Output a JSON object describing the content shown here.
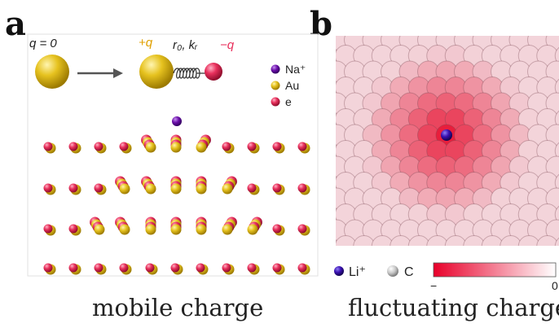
{
  "panels": {
    "a": {
      "label": "a",
      "caption": "mobile charge",
      "neutral_label": "q = 0",
      "plus_label": "+q",
      "spring_label": "r₀, kᵣ",
      "minus_label": "−q",
      "legend": [
        {
          "label": "Na⁺",
          "color": "#6a0da8"
        },
        {
          "label": "Au",
          "color": "#e6c21f"
        },
        {
          "label": "e",
          "color": "#e8305c"
        }
      ]
    },
    "b": {
      "label": "b",
      "caption": "fluctuating charge",
      "legend": [
        {
          "label": "Li⁺",
          "color": "#3a10b0"
        },
        {
          "label": "C",
          "color": "#c8c8c8"
        }
      ],
      "colorbar_min": "−",
      "colorbar_max": "0",
      "colorbar_from": "#e8002a",
      "colorbar_to": "#ffffff"
    }
  },
  "colors": {
    "gold": "#e6c21f",
    "electron": "#e8305c",
    "sodium": "#6a0da8",
    "lithium": "#3a10b0",
    "carbon_face": "#f3dfe3"
  }
}
